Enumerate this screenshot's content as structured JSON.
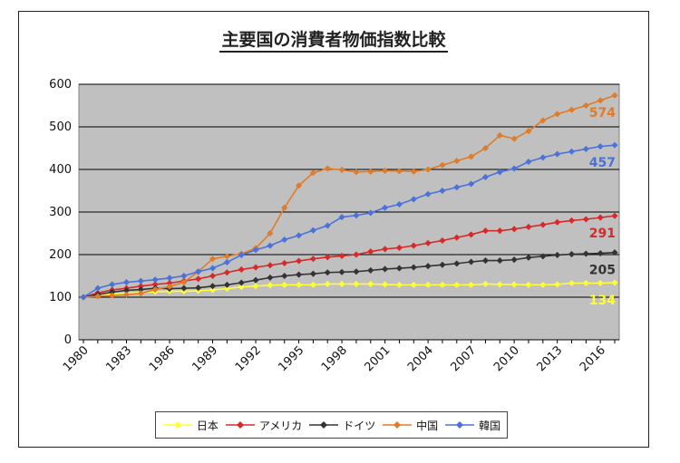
{
  "chart_data": {
    "type": "line",
    "title": "主要国の消費者物価指数比較",
    "ylim": [
      0,
      600
    ],
    "yticks": [
      "0",
      "100",
      "200",
      "300",
      "400",
      "500",
      "600"
    ],
    "xtick_labels": [
      "1980",
      "1983",
      "1986",
      "1989",
      "1992",
      "1995",
      "1998",
      "2001",
      "2004",
      "2007",
      "2010",
      "2013",
      "2016"
    ],
    "x": [
      1980,
      1981,
      1982,
      1983,
      1984,
      1985,
      1986,
      1987,
      1988,
      1989,
      1990,
      1991,
      1992,
      1993,
      1994,
      1995,
      1996,
      1997,
      1998,
      1999,
      2000,
      2001,
      2002,
      2003,
      2004,
      2005,
      2006,
      2007,
      2008,
      2009,
      2010,
      2011,
      2012,
      2013,
      2014,
      2015,
      2016,
      2017
    ],
    "grid": true,
    "legend_position": "bottom",
    "series": [
      {
        "name": "日本",
        "color": "#ffff33",
        "end_label": "134",
        "values": [
          100,
          105,
          107,
          109,
          111,
          113,
          114,
          114,
          115,
          117,
          120,
          124,
          126,
          128,
          129,
          129,
          129,
          131,
          131,
          131,
          131,
          130,
          129,
          129,
          129,
          129,
          129,
          129,
          131,
          130,
          130,
          129,
          129,
          130,
          133,
          133,
          133,
          134
        ]
      },
      {
        "name": "アメリカ",
        "color": "#d62a2a",
        "end_label": "291",
        "values": [
          100,
          110,
          117,
          121,
          126,
          130,
          133,
          138,
          143,
          150,
          158,
          165,
          170,
          175,
          180,
          185,
          190,
          194,
          197,
          200,
          207,
          213,
          216,
          221,
          227,
          233,
          240,
          247,
          256,
          256,
          260,
          265,
          270,
          276,
          280,
          283,
          287,
          291
        ]
      },
      {
        "name": "ドイツ",
        "color": "#333333",
        "end_label": "205",
        "values": [
          100,
          106,
          112,
          116,
          118,
          121,
          120,
          121,
          122,
          126,
          129,
          134,
          140,
          146,
          150,
          153,
          155,
          158,
          159,
          160,
          163,
          166,
          168,
          170,
          173,
          176,
          179,
          183,
          186,
          186,
          188,
          193,
          196,
          199,
          201,
          202,
          203,
          205
        ]
      },
      {
        "name": "中国",
        "color": "#e07b28",
        "end_label": "574",
        "values": [
          100,
          102,
          104,
          106,
          109,
          118,
          125,
          135,
          160,
          190,
          196,
          202,
          215,
          250,
          310,
          362,
          392,
          402,
          399,
          394,
          395,
          397,
          396,
          395,
          400,
          410,
          420,
          430,
          450,
          480,
          472,
          490,
          515,
          530,
          540,
          550,
          562,
          574
        ]
      },
      {
        "name": "韓国",
        "color": "#4a72d8",
        "end_label": "457",
        "values": [
          100,
          121,
          130,
          135,
          138,
          141,
          145,
          150,
          160,
          168,
          182,
          199,
          211,
          221,
          235,
          245,
          257,
          268,
          288,
          292,
          298,
          310,
          318,
          330,
          342,
          350,
          358,
          366,
          382,
          394,
          402,
          418,
          428,
          436,
          442,
          448,
          454,
          457
        ]
      }
    ]
  }
}
